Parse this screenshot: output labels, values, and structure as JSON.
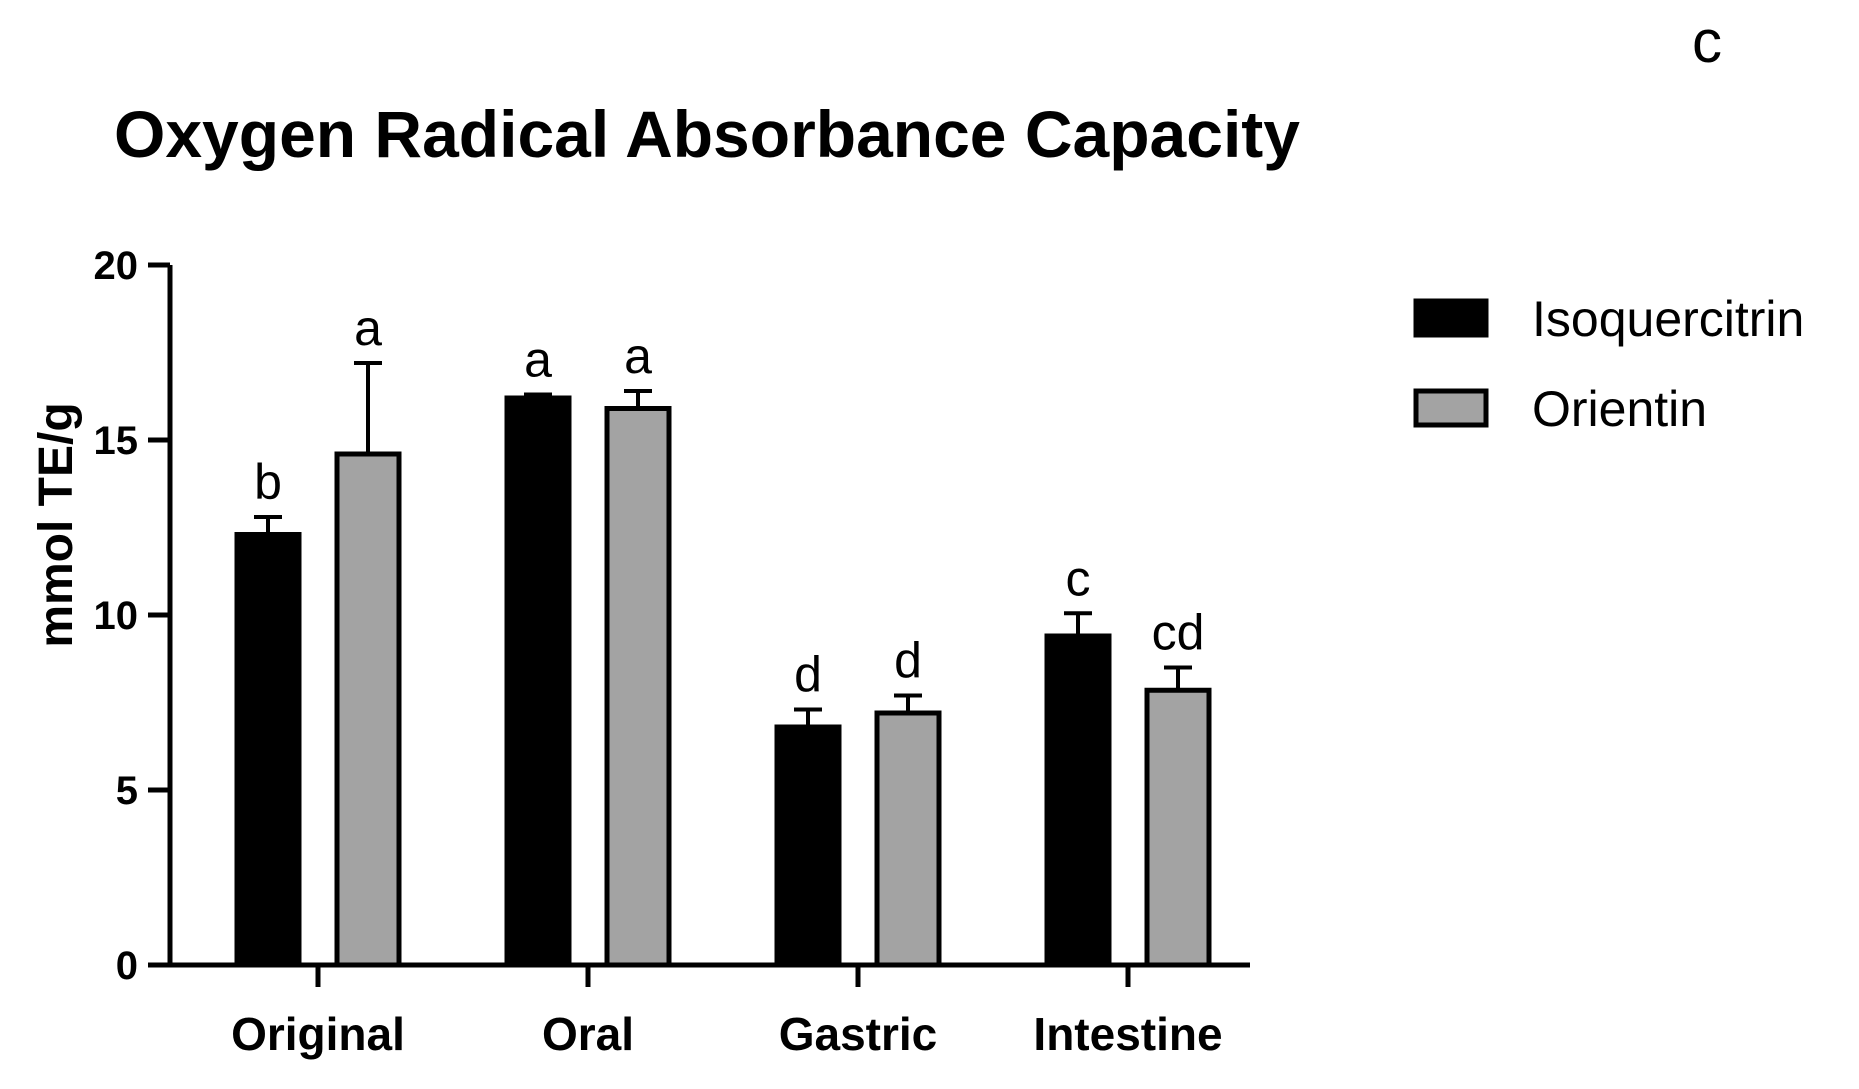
{
  "panel_label": "c",
  "chart_data": {
    "type": "bar",
    "title": "Oxygen Radical Absorbance Capacity",
    "xlabel": "",
    "ylabel": "mmol TE/g",
    "ylim": [
      0,
      20
    ],
    "yticks": [
      0,
      5,
      10,
      15,
      20
    ],
    "categories": [
      "Original",
      "Oral",
      "Gastric",
      "Intestine"
    ],
    "series": [
      {
        "name": "Isoquercitrin",
        "color": "#000000",
        "values": [
          12.3,
          16.2,
          6.8,
          9.4
        ],
        "errors": [
          0.5,
          0.1,
          0.5,
          0.65
        ],
        "labels": [
          "b",
          "a",
          "d",
          "c"
        ]
      },
      {
        "name": "Orientin",
        "color": "#a3a3a3",
        "values": [
          14.6,
          15.9,
          7.2,
          7.85
        ],
        "errors": [
          2.6,
          0.5,
          0.5,
          0.65
        ],
        "labels": [
          "a",
          "a",
          "d",
          "cd"
        ]
      }
    ],
    "legend": "right"
  }
}
